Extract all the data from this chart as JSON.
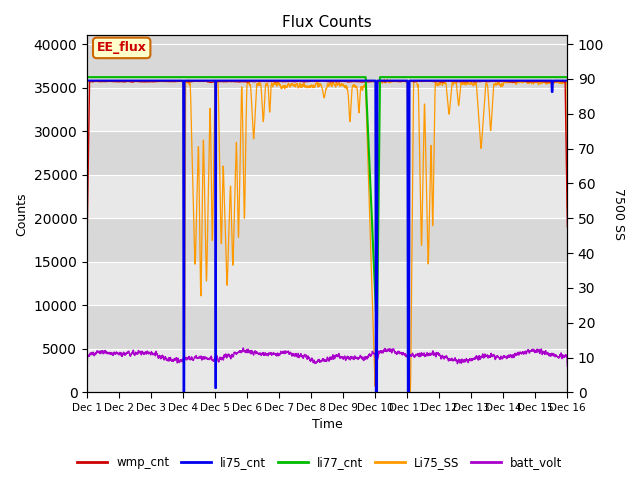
{
  "title": "Flux Counts",
  "xlabel": "Time",
  "ylabel_left": "Counts",
  "ylabel_right": "7500 SS",
  "annotation": "EE_flux",
  "x_tick_labels": [
    "Dec 1",
    "Dec 2",
    "Dec 3",
    "Dec 4",
    "Dec 5",
    "Dec 6",
    "Dec 7",
    "Dec 8",
    "Dec 9",
    "Dec 10",
    "Dec 11",
    "Dec 12",
    "Dec 13",
    "Dec 14",
    "Dec 15",
    "Dec 16"
  ],
  "ylim_left": [
    0,
    41000
  ],
  "ylim_right": [
    0,
    102.5
  ],
  "yticks_left": [
    0,
    5000,
    10000,
    15000,
    20000,
    25000,
    30000,
    35000,
    40000
  ],
  "yticks_right": [
    0,
    10,
    20,
    30,
    40,
    50,
    60,
    70,
    80,
    90,
    100
  ],
  "bg_color": "#e8e8e8",
  "plot_bg": "#f0f0f0",
  "line_colors": {
    "wmp_cnt": "#cc0000",
    "li75_cnt": "#0000ee",
    "li77_cnt": "#00bb00",
    "Li75_SS": "#ff9900",
    "batt_volt": "#aa00cc"
  },
  "legend_entries": [
    "wmp_cnt",
    "li75_cnt",
    "li77_cnt",
    "Li75_SS",
    "batt_volt"
  ]
}
